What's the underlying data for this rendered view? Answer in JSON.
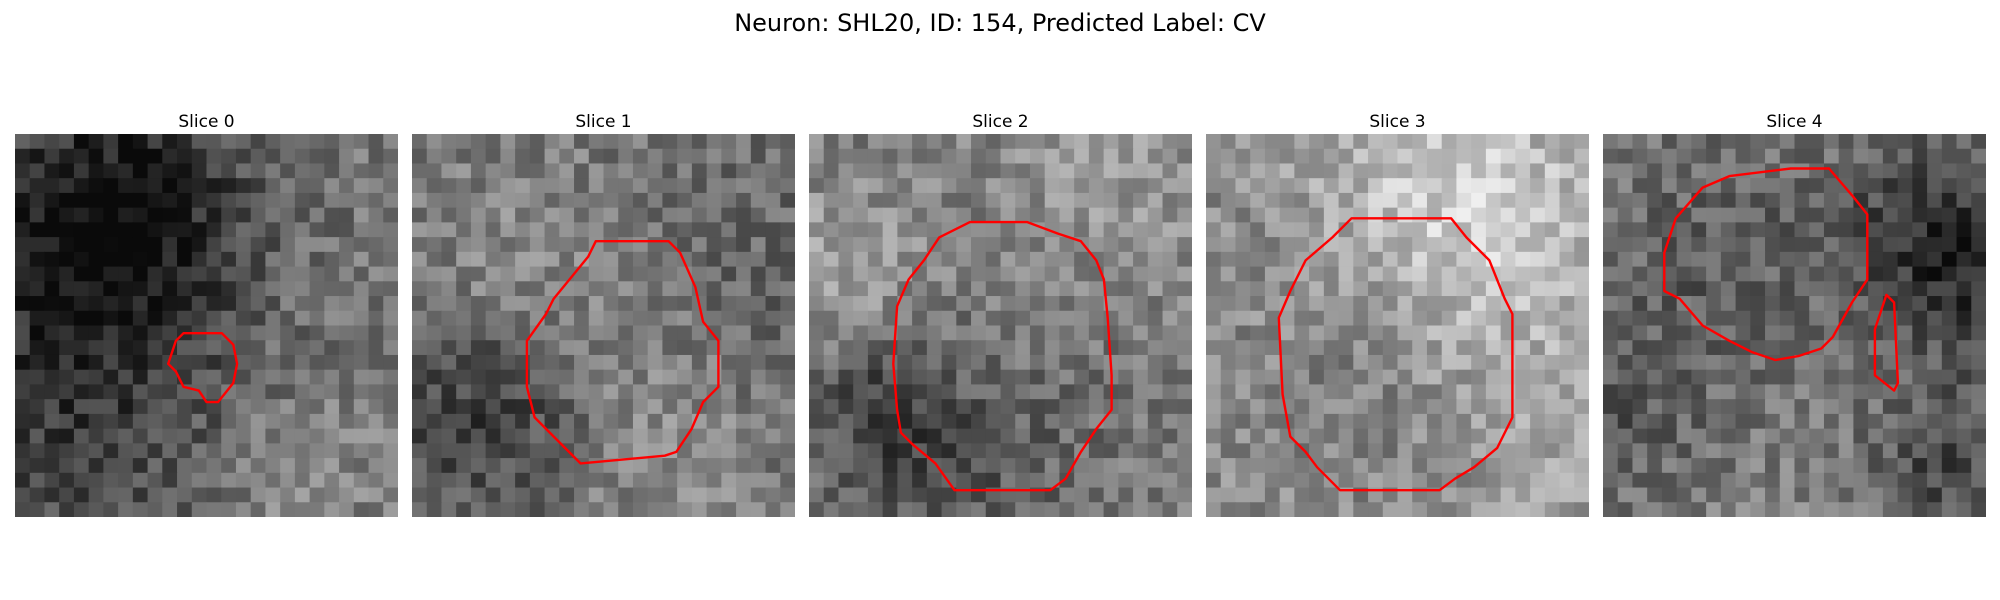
{
  "figure": {
    "title": "Neuron: SHL20, ID: 154, Predicted Label: CV"
  },
  "slices": [
    {
      "title": "Slice 0",
      "seed": 11,
      "contour_color": "#ff0000",
      "contours": [
        [
          [
            0.42,
            0.54
          ],
          [
            0.44,
            0.52
          ],
          [
            0.54,
            0.52
          ],
          [
            0.57,
            0.55
          ],
          [
            0.58,
            0.6
          ],
          [
            0.57,
            0.65
          ],
          [
            0.53,
            0.7
          ],
          [
            0.5,
            0.7
          ],
          [
            0.48,
            0.67
          ],
          [
            0.44,
            0.66
          ],
          [
            0.42,
            0.62
          ],
          [
            0.4,
            0.6
          ]
        ]
      ]
    },
    {
      "title": "Slice 1",
      "seed": 23,
      "contour_color": "#ff0000",
      "contours": [
        [
          [
            0.48,
            0.28
          ],
          [
            0.67,
            0.28
          ],
          [
            0.7,
            0.31
          ],
          [
            0.74,
            0.4
          ],
          [
            0.76,
            0.49
          ],
          [
            0.8,
            0.54
          ],
          [
            0.8,
            0.66
          ],
          [
            0.76,
            0.7
          ],
          [
            0.73,
            0.77
          ],
          [
            0.69,
            0.83
          ],
          [
            0.66,
            0.84
          ],
          [
            0.44,
            0.86
          ],
          [
            0.38,
            0.8
          ],
          [
            0.32,
            0.74
          ],
          [
            0.3,
            0.66
          ],
          [
            0.3,
            0.54
          ],
          [
            0.35,
            0.47
          ],
          [
            0.37,
            0.43
          ],
          [
            0.46,
            0.32
          ]
        ]
      ]
    },
    {
      "title": "Slice 2",
      "seed": 37,
      "contour_color": "#ff0000",
      "contours": [
        [
          [
            0.42,
            0.23
          ],
          [
            0.57,
            0.23
          ],
          [
            0.65,
            0.26
          ],
          [
            0.71,
            0.28
          ],
          [
            0.75,
            0.33
          ],
          [
            0.77,
            0.38
          ],
          [
            0.78,
            0.48
          ],
          [
            0.79,
            0.63
          ],
          [
            0.79,
            0.72
          ],
          [
            0.75,
            0.77
          ],
          [
            0.71,
            0.83
          ],
          [
            0.67,
            0.9
          ],
          [
            0.63,
            0.93
          ],
          [
            0.38,
            0.93
          ],
          [
            0.33,
            0.86
          ],
          [
            0.27,
            0.81
          ],
          [
            0.24,
            0.78
          ],
          [
            0.23,
            0.72
          ],
          [
            0.22,
            0.6
          ],
          [
            0.23,
            0.45
          ],
          [
            0.26,
            0.38
          ],
          [
            0.3,
            0.33
          ],
          [
            0.34,
            0.27
          ]
        ]
      ]
    },
    {
      "title": "Slice 3",
      "seed": 51,
      "contour_color": "#ff0000",
      "contours": [
        [
          [
            0.38,
            0.22
          ],
          [
            0.64,
            0.22
          ],
          [
            0.68,
            0.27
          ],
          [
            0.74,
            0.33
          ],
          [
            0.78,
            0.43
          ],
          [
            0.8,
            0.47
          ],
          [
            0.8,
            0.74
          ],
          [
            0.76,
            0.82
          ],
          [
            0.7,
            0.87
          ],
          [
            0.65,
            0.9
          ],
          [
            0.61,
            0.93
          ],
          [
            0.35,
            0.93
          ],
          [
            0.29,
            0.87
          ],
          [
            0.26,
            0.83
          ],
          [
            0.22,
            0.79
          ],
          [
            0.2,
            0.68
          ],
          [
            0.19,
            0.48
          ],
          [
            0.22,
            0.41
          ],
          [
            0.26,
            0.33
          ],
          [
            0.33,
            0.27
          ]
        ]
      ]
    },
    {
      "title": "Slice 4",
      "seed": 67,
      "contour_color": "#ff0000",
      "contours": [
        [
          [
            0.33,
            0.11
          ],
          [
            0.49,
            0.09
          ],
          [
            0.59,
            0.09
          ],
          [
            0.65,
            0.16
          ],
          [
            0.69,
            0.21
          ],
          [
            0.69,
            0.38
          ],
          [
            0.65,
            0.44
          ],
          [
            0.6,
            0.53
          ],
          [
            0.57,
            0.56
          ],
          [
            0.51,
            0.58
          ],
          [
            0.45,
            0.59
          ],
          [
            0.39,
            0.57
          ],
          [
            0.33,
            0.54
          ],
          [
            0.26,
            0.5
          ],
          [
            0.2,
            0.43
          ],
          [
            0.16,
            0.41
          ],
          [
            0.16,
            0.31
          ],
          [
            0.19,
            0.22
          ],
          [
            0.26,
            0.14
          ]
        ],
        [
          [
            0.74,
            0.42
          ],
          [
            0.76,
            0.44
          ],
          [
            0.77,
            0.65
          ],
          [
            0.76,
            0.67
          ],
          [
            0.71,
            0.63
          ],
          [
            0.71,
            0.51
          ]
        ]
      ]
    }
  ]
}
